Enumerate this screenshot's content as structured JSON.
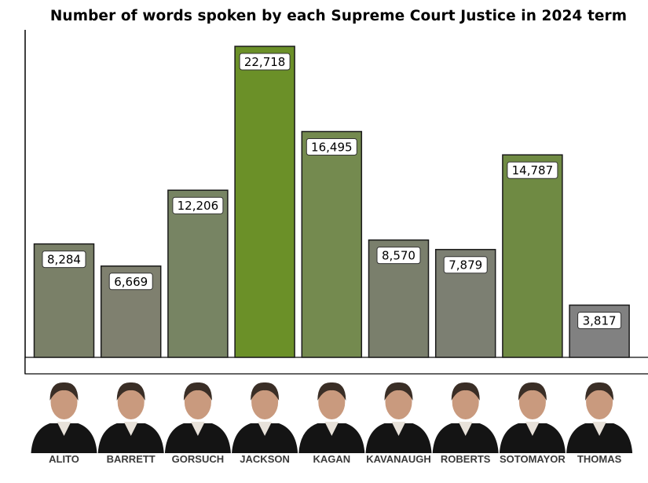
{
  "chart_data": {
    "type": "bar",
    "title": "Number of words spoken by each Supreme Court Justice in 2024 term",
    "categories": [
      "ALITO",
      "BARRETT",
      "GORSUCH",
      "JACKSON",
      "KAGAN",
      "KAVANAUGH",
      "ROBERTS",
      "SOTOMAYOR",
      "THOMAS"
    ],
    "values": [
      8284,
      6669,
      12206,
      22718,
      16495,
      8570,
      7879,
      14787,
      3817
    ],
    "value_labels": [
      "8,284",
      "6,669",
      "12,206",
      "22,718",
      "16,495",
      "8,570",
      "7,879",
      "14,787",
      "3,817"
    ],
    "bar_colors": [
      "#7a8068",
      "#7f806f",
      "#778463",
      "#6b9028",
      "#748a4f",
      "#7a7f6c",
      "#7c7f72",
      "#6f8a43",
      "#818181"
    ],
    "portrait_icons": [
      "justice-portrait",
      "justice-portrait",
      "justice-portrait",
      "justice-portrait",
      "justice-portrait",
      "justice-portrait",
      "justice-portrait",
      "justice-portrait",
      "justice-portrait"
    ],
    "ylim": [
      0,
      23000
    ],
    "grid": false,
    "legend": "none"
  }
}
